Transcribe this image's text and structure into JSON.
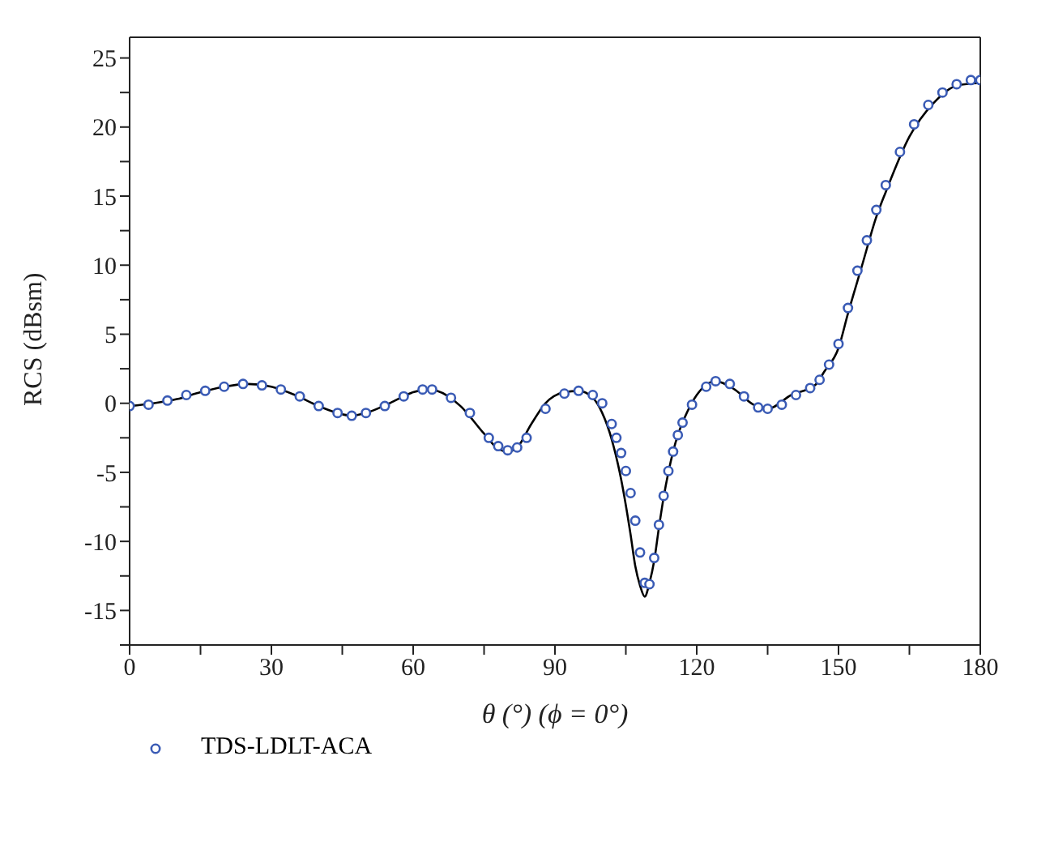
{
  "chart_data": {
    "type": "scatter",
    "xlabel": "θ (°) (ϕ = 0°)",
    "ylabel": "RCS (dBsm)",
    "xlim": [
      0,
      180
    ],
    "xticks": [
      0,
      {
        "value": 15,
        "label": null
      },
      30,
      {
        "value": 45,
        "label": null
      },
      60,
      {
        "value": 75,
        "label": null
      },
      90,
      {
        "value": 105,
        "label": null
      },
      120,
      {
        "value": 135,
        "label": null
      },
      150,
      {
        "value": 165,
        "label": null
      },
      180
    ],
    "ylim": [
      -17.5,
      26.5
    ],
    "yticks": [
      {
        "value": -17.5,
        "label": null
      },
      -15,
      {
        "value": -12.5,
        "label": null
      },
      -10,
      {
        "value": -7.5,
        "label": null
      },
      -5,
      {
        "value": -2.5,
        "label": null
      },
      0,
      {
        "value": 2.5,
        "label": null
      },
      5,
      {
        "value": 7.5,
        "label": null
      },
      10,
      {
        "value": 12.5,
        "label": null
      },
      15,
      {
        "value": 17.5,
        "label": null
      },
      20,
      {
        "value": 22.5,
        "label": null
      },
      25
    ],
    "legend": "bottom left",
    "series": [
      {
        "type": "line",
        "color": "#000000",
        "line_style": "solid",
        "marker": "none",
        "x": [
          0,
          5,
          10,
          15,
          20,
          25,
          30,
          35,
          40,
          45,
          47,
          50,
          55,
          60,
          63,
          65,
          70,
          75,
          78,
          80,
          82,
          85,
          88,
          92,
          95,
          98,
          100,
          102,
          104,
          106,
          107,
          108,
          109,
          110,
          111,
          112,
          113,
          114,
          115,
          116,
          117,
          120,
          124,
          128,
          132,
          135,
          140,
          145,
          147,
          150,
          152,
          155,
          158,
          160,
          165,
          170,
          175,
          180
        ],
        "values": [
          -0.2,
          0,
          0.3,
          0.8,
          1.2,
          1.4,
          1.2,
          0.6,
          -0.2,
          -0.8,
          -0.9,
          -0.7,
          0,
          0.8,
          1.0,
          0.9,
          -0.2,
          -2.2,
          -3.3,
          -3.5,
          -3.2,
          -1.5,
          0,
          0.8,
          0.9,
          0.4,
          -0.7,
          -2.6,
          -5.5,
          -9.5,
          -11.8,
          -13.2,
          -14,
          -13,
          -11.4,
          -9,
          -6.8,
          -5,
          -3.5,
          -2.3,
          -1.4,
          0.6,
          1.6,
          1.0,
          -0.1,
          -0.4,
          0.6,
          1.3,
          2.3,
          4,
          6.5,
          10,
          13.5,
          15.3,
          19.3,
          21.7,
          23,
          23.2
        ]
      },
      {
        "name": "TDS-LDLT-ACA",
        "color": "#3a5bb5",
        "marker": "circle",
        "x": [
          0,
          4,
          8,
          12,
          16,
          20,
          24,
          28,
          32,
          36,
          40,
          44,
          47,
          50,
          54,
          58,
          62,
          64,
          68,
          72,
          76,
          78,
          80,
          82,
          84,
          88,
          92,
          95,
          98,
          100,
          102,
          103,
          104,
          105,
          106,
          107,
          108,
          109,
          110,
          111,
          112,
          113,
          114,
          115,
          116,
          117,
          119,
          122,
          124,
          127,
          130,
          133,
          135,
          138,
          141,
          144,
          146,
          148,
          150,
          152,
          154,
          156,
          158,
          160,
          163,
          166,
          169,
          172,
          175,
          178,
          180
        ],
        "values": [
          -0.2,
          -0.1,
          0.2,
          0.6,
          0.9,
          1.2,
          1.4,
          1.3,
          1.0,
          0.5,
          -0.2,
          -0.7,
          -0.9,
          -0.7,
          -0.2,
          0.5,
          1.0,
          1.0,
          0.4,
          -0.7,
          -2.5,
          -3.1,
          -3.4,
          -3.2,
          -2.5,
          -0.4,
          0.7,
          0.9,
          0.6,
          0,
          -1.5,
          -2.5,
          -3.6,
          -4.9,
          -6.5,
          -8.5,
          -10.8,
          -13,
          -13.1,
          -11.2,
          -8.8,
          -6.7,
          -4.9,
          -3.5,
          -2.3,
          -1.4,
          -0.1,
          1.2,
          1.6,
          1.4,
          0.5,
          -0.3,
          -0.4,
          -0.1,
          0.6,
          1.1,
          1.7,
          2.8,
          4.3,
          6.9,
          9.6,
          11.8,
          14,
          15.8,
          18.2,
          20.2,
          21.6,
          22.5,
          23.1,
          23.4,
          23.4
        ]
      }
    ]
  }
}
